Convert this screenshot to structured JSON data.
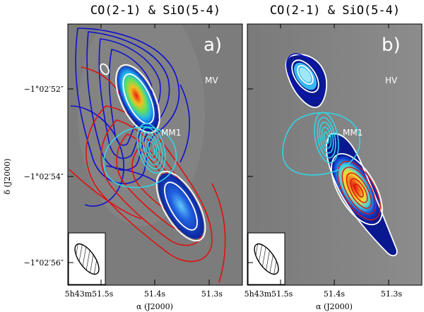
{
  "figure": {
    "panels": [
      {
        "id": "a",
        "title": "CO(2-1) & SiO(5-4)",
        "panel_label": "a)",
        "velocity_label": "MV",
        "source_label": "MM1"
      },
      {
        "id": "b",
        "title": "CO(2-1) & SiO(5-4)",
        "panel_label": "b)",
        "velocity_label": "HV",
        "source_label": "MM1"
      }
    ],
    "y_axis": {
      "label": "δ (J2000)",
      "ticks": [
        "−1°02′52″",
        "−1°02′54″",
        "−1°02′56″"
      ]
    },
    "x_axis": {
      "label": "α (J2000)",
      "ticks_panel_a": [
        "5h43m51.5s",
        "51.4s",
        "51.3s"
      ],
      "ticks_panel_b": [
        "5h43m51.5s",
        "51.4s",
        "51.3s"
      ]
    },
    "colors": {
      "background": "#808080",
      "red_contours": "#e01010",
      "blue_contours": "#1010d0",
      "cyan_contours": "#30d8e8",
      "white_contours": "#ffffff"
    }
  }
}
